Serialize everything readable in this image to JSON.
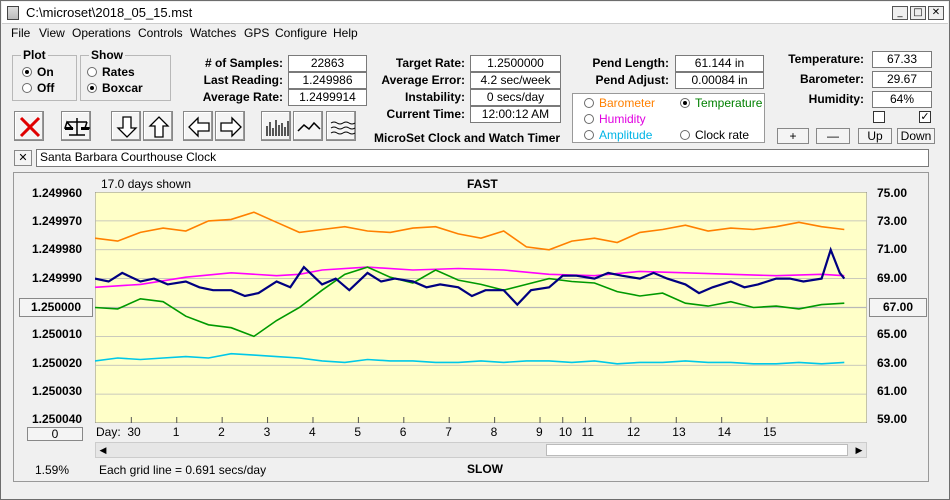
{
  "window": {
    "title": "C:\\microset\\2018_05_15.mst"
  },
  "menu": [
    "File",
    "View",
    "Operations",
    "Controls",
    "Watches",
    "GPS",
    "Configure",
    "Help"
  ],
  "plot_group": {
    "title": "Plot",
    "on": "On",
    "off": "Off",
    "selected": "On"
  },
  "show_group": {
    "title": "Show",
    "rates": "Rates",
    "boxcar": "Boxcar",
    "selected": "Boxcar"
  },
  "stats": {
    "samples_label": "# of Samples:",
    "samples": "22863",
    "last_label": "Last Reading:",
    "last": "1.249986",
    "avg_label": "Average Rate:",
    "avg": "1.2499914",
    "target_label": "Target Rate:",
    "target": "1.2500000",
    "avgerr_label": "Average Error:",
    "avgerr": "4.2 sec/week",
    "instab_label": "Instability:",
    "instab": "0 secs/day",
    "time_label": "Current Time:",
    "time": "12:00:12 AM",
    "pendlen_label": "Pend Length:",
    "pendlen": "61.144 in",
    "pendadj_label": "Pend Adjust:",
    "pendadj": "0.00084 in",
    "temp_label": "Temperature:",
    "temp": "67.33",
    "baro_label": "Barometer:",
    "baro": "29.67",
    "hum_label": "Humidity:",
    "hum": "64%"
  },
  "app_caption": "MicroSet Clock and Watch Timer",
  "sensor_options": {
    "barometer": "Barometer",
    "temperature": "Temperature",
    "humidity": "Humidity",
    "amplitude": "Amplitude",
    "clockrate": "Clock rate",
    "selected": "Temperature",
    "colors": {
      "barometer": "#ff8000",
      "temperature": "#008000",
      "humidity": "#ff00ff",
      "amplitude": "#00b4e6",
      "clockrate": "#000000"
    }
  },
  "scale_buttons": {
    "plus": "+",
    "minus": "—",
    "up": "Up",
    "down": "Down"
  },
  "clock_name": "Santa Barbara Courthouse Clock",
  "close_x": "✕",
  "plot": {
    "days_shown": "17.0 days shown",
    "fast": "FAST",
    "slow": "SLOW",
    "grid_note": "Each grid line = 0.691 secs/day",
    "left_button": "0",
    "left_percent": "1.59%",
    "center_left": "1.250000",
    "center_right": "67.00",
    "day_label": "Day:",
    "left_ticks": [
      "1.249960",
      "1.249970",
      "1.249980",
      "1.249990",
      "1.250000",
      "1.250010",
      "1.250020",
      "1.250030",
      "1.250040"
    ],
    "right_ticks": [
      "75.00",
      "73.00",
      "71.00",
      "69.00",
      "",
      "65.00",
      "63.00",
      "61.00",
      "59.00"
    ],
    "days": [
      "30",
      "1",
      "2",
      "3",
      "4",
      "5",
      "6",
      "7",
      "8",
      "9",
      "10",
      "11",
      "12",
      "13",
      "14",
      "15"
    ]
  },
  "chart_data": {
    "type": "line",
    "x_unit": "days",
    "x_range": [
      0,
      17
    ],
    "y_left_range": [
      1.24996,
      1.25004
    ],
    "y_right_range": [
      59.0,
      75.0
    ],
    "series": [
      {
        "name": "Barometer",
        "color": "#ff8000",
        "x": [
          0,
          0.5,
          1,
          1.5,
          2,
          2.5,
          3,
          3.5,
          4,
          4.5,
          5,
          5.5,
          6,
          6.5,
          7,
          7.5,
          8,
          8.5,
          9,
          9.5,
          10,
          10.5,
          11,
          11.5,
          12,
          12.5,
          13,
          13.5,
          14,
          14.5,
          15,
          15.5,
          16,
          16.5
        ],
        "y": [
          71.8,
          71.6,
          72.2,
          72.5,
          72.3,
          73.0,
          73.1,
          73.6,
          72.9,
          72.2,
          72.4,
          72.6,
          72.3,
          72.2,
          72.5,
          72.6,
          72.1,
          71.8,
          72.3,
          71.2,
          71.0,
          71.6,
          71.8,
          71.5,
          72.2,
          72.4,
          72.7,
          72.3,
          72.5,
          72.4,
          72.6,
          72.9,
          72.6,
          72.4
        ]
      },
      {
        "name": "Humidity",
        "color": "#ff00ff",
        "x": [
          0,
          1,
          2,
          3,
          4,
          4.5,
          5,
          6,
          7,
          8,
          9,
          10,
          11,
          12,
          13,
          14,
          15,
          16,
          16.5
        ],
        "y": [
          68.4,
          68.6,
          69.1,
          69.4,
          69.2,
          69.3,
          69.6,
          69.8,
          69.6,
          69.7,
          69.6,
          69.3,
          69.2,
          69.5,
          69.4,
          69.3,
          69.2,
          69.3,
          69.2
        ]
      },
      {
        "name": "Temperature",
        "color": "#009900",
        "x": [
          0,
          0.5,
          1,
          1.5,
          2,
          2.5,
          3,
          3.5,
          4,
          4.5,
          5,
          5.5,
          6,
          6.5,
          7,
          7.5,
          8,
          8.5,
          9,
          9.5,
          10,
          10.5,
          11,
          11.5,
          12,
          12.5,
          13,
          13.5,
          14,
          14.5,
          15,
          15.5,
          16,
          16.5
        ],
        "y": [
          67.0,
          66.9,
          67.6,
          67.4,
          66.4,
          65.8,
          65.6,
          65.0,
          66.1,
          67.0,
          68.2,
          69.3,
          69.8,
          69.1,
          68.7,
          69.6,
          68.9,
          68.6,
          68.2,
          68.6,
          69.0,
          68.8,
          68.7,
          68.1,
          67.8,
          68.0,
          67.3,
          67.1,
          67.4,
          67.0,
          67.1,
          66.9,
          67.2,
          67.3
        ]
      },
      {
        "name": "Clock rate",
        "color": "#000080",
        "x": [
          0,
          0.3,
          0.6,
          1,
          1.3,
          1.6,
          2,
          2.3,
          2.6,
          3,
          3.3,
          3.6,
          4,
          4.3,
          4.6,
          5,
          5.3,
          5.6,
          6,
          6.3,
          6.6,
          7,
          7.3,
          7.6,
          8,
          8.3,
          8.6,
          9,
          9.3,
          9.6,
          10,
          10.3,
          10.6,
          11,
          11.3,
          11.6,
          12,
          12.3,
          12.6,
          13,
          13.3,
          13.6,
          14,
          14.3,
          14.6,
          15,
          15.3,
          15.6,
          16,
          16.2,
          16.4,
          16.5
        ],
        "y": [
          1.24999,
          1.249991,
          1.249988,
          1.249991,
          1.24999,
          1.249992,
          1.249991,
          1.249993,
          1.249994,
          1.249994,
          1.249996,
          1.249995,
          1.249991,
          1.249993,
          1.249986,
          1.249992,
          1.24999,
          1.249994,
          1.249988,
          1.249991,
          1.24999,
          1.249991,
          1.249993,
          1.249992,
          1.249993,
          1.249996,
          1.249994,
          1.249994,
          1.249999,
          1.249994,
          1.249993,
          1.249989,
          1.249989,
          1.24999,
          1.249988,
          1.249989,
          1.24999,
          1.249988,
          1.24999,
          1.249992,
          1.249995,
          1.249993,
          1.249991,
          1.249993,
          1.249992,
          1.24999,
          1.24999,
          1.249991,
          1.24999,
          1.24998,
          1.249988,
          1.24999
        ]
      },
      {
        "name": "Amplitude",
        "color": "#00c8e8",
        "x": [
          0,
          0.5,
          1,
          1.5,
          2,
          2.5,
          3,
          3.5,
          4,
          4.5,
          5,
          5.5,
          6,
          6.5,
          7,
          7.5,
          8,
          8.5,
          9,
          9.5,
          10,
          10.5,
          11,
          11.5,
          12,
          12.5,
          13,
          13.5,
          14,
          14.5,
          15,
          15.5,
          16,
          16.5
        ],
        "y": [
          63.3,
          63.5,
          63.4,
          63.5,
          63.6,
          63.5,
          63.8,
          63.7,
          63.6,
          63.5,
          63.3,
          63.2,
          63.4,
          63.3,
          63.3,
          63.2,
          63.2,
          63.3,
          63.2,
          63.3,
          63.3,
          63.2,
          63.3,
          63.1,
          63.2,
          63.2,
          63.3,
          63.2,
          63.2,
          63.1,
          63.1,
          63.2,
          63.1,
          63.2
        ]
      }
    ]
  }
}
